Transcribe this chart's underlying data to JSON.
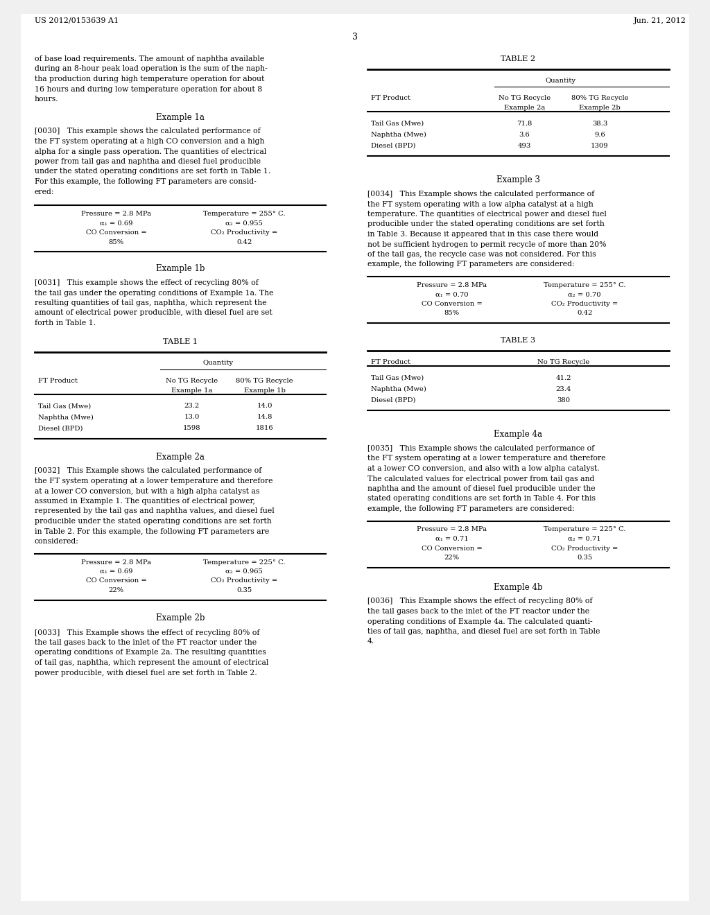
{
  "bg_color": "#f0f0f0",
  "page_color": "#ffffff",
  "header_left": "US 2012/0153639 A1",
  "header_right": "Jun. 21, 2012",
  "page_number": "3",
  "table1": {
    "title": "TABLE 1",
    "rows": [
      [
        "Tail Gas (Mwe)",
        "23.2",
        "14.0"
      ],
      [
        "Naphtha (Mwe)",
        "13.0",
        "14.8"
      ],
      [
        "Diesel (BPD)",
        "1598",
        "1816"
      ]
    ]
  },
  "table2": {
    "title": "TABLE 2",
    "rows": [
      [
        "Tail Gas (Mwe)",
        "71.8",
        "38.3"
      ],
      [
        "Naphtha (Mwe)",
        "3.6",
        "9.6"
      ],
      [
        "Diesel (BPD)",
        "493",
        "1309"
      ]
    ]
  },
  "table3": {
    "title": "TABLE 3",
    "rows": [
      [
        "Tail Gas (Mwe)",
        "41.2"
      ],
      [
        "Naphtha (Mwe)",
        "23.4"
      ],
      [
        "Diesel (BPD)",
        "380"
      ]
    ]
  }
}
